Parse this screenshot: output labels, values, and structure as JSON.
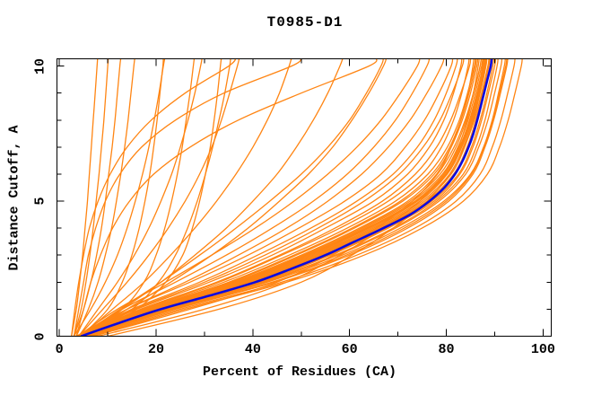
{
  "chart_data": {
    "type": "line",
    "title": "T0985-D1",
    "xlabel": "Percent of Residues (CA)",
    "ylabel": "Distance Cutoff, A",
    "xlim": [
      -0.5,
      101.7
    ],
    "ylim": [
      0,
      10.27
    ],
    "grid": "off",
    "legend": "none",
    "axis_color": "#000000",
    "x_tick_labels": [
      [
        0,
        "0"
      ],
      [
        20,
        "20"
      ],
      [
        40,
        "40"
      ],
      [
        60,
        "60"
      ],
      [
        80,
        "80"
      ],
      [
        100,
        "100"
      ]
    ],
    "x_minor_ticks": [
      10,
      30,
      50,
      70,
      90
    ],
    "y_tick_labels": [
      [
        0,
        "0"
      ],
      [
        5,
        "5"
      ],
      [
        10,
        "10"
      ]
    ],
    "y_minor_ticks": [
      1,
      2,
      3,
      4,
      6,
      7,
      8,
      9
    ],
    "highlight_model": {
      "name": "highlighted-model",
      "color": "#0a0ae0",
      "cutoffs": [
        0,
        0.5,
        1,
        1.5,
        2,
        2.5,
        3,
        3.5,
        4,
        4.5,
        5,
        5.5,
        6,
        6.5,
        7,
        7.5,
        8,
        8.5,
        9,
        9.5,
        10,
        10.3
      ],
      "percents": [
        4.5,
        12.5,
        21,
        31,
        40.5,
        48,
        55,
        61,
        67,
        72.5,
        76.5,
        79.6,
        81.8,
        83.4,
        84.6,
        85.6,
        86.4,
        87.1,
        87.8,
        88.5,
        89.2,
        89.4
      ]
    },
    "models": {
      "name": "server-models",
      "color": "#ff8513",
      "cutoffs": [
        0,
        1,
        2,
        3,
        4,
        5,
        6,
        7,
        8,
        9,
        10,
        10.3
      ],
      "percents_list": [
        [
          4,
          18,
          36,
          50,
          62,
          72,
          78,
          81,
          83,
          84.5,
          85.5,
          85.7
        ],
        [
          5,
          20,
          38,
          52,
          64,
          74,
          80,
          83,
          85,
          86.5,
          87.5,
          87.7
        ],
        [
          4.5,
          19,
          37,
          51,
          63.5,
          73.5,
          79.5,
          82.5,
          84.3,
          85.6,
          86.6,
          86.8
        ],
        [
          5,
          22,
          42,
          57,
          69,
          78,
          83.5,
          86.2,
          88,
          89.3,
          90.5,
          90.7
        ],
        [
          5.5,
          23,
          43,
          58.5,
          70.5,
          79.5,
          85,
          87.7,
          89.5,
          90.8,
          92,
          92.2
        ],
        [
          4,
          17,
          33,
          46,
          58,
          68,
          75,
          79,
          81.5,
          83.2,
          84.5,
          84.7
        ],
        [
          4,
          16,
          31,
          44,
          55,
          65,
          72,
          76.5,
          79.5,
          81.5,
          83,
          83.2
        ],
        [
          5,
          21,
          40,
          54.5,
          66.5,
          76,
          81.5,
          84.3,
          86.1,
          87.5,
          88.8,
          89
        ],
        [
          5,
          20.5,
          39.5,
          54,
          66,
          75.5,
          81,
          83.8,
          85.6,
          87,
          88.2,
          88.4
        ],
        [
          4.5,
          19.5,
          38.5,
          53,
          65,
          74.5,
          80.2,
          83.2,
          85.2,
          86.7,
          88,
          88.2
        ],
        [
          6,
          24,
          44.5,
          60,
          72,
          80.5,
          85.5,
          88,
          89.8,
          91.2,
          92.5,
          92.7
        ],
        [
          6.5,
          25,
          46,
          61.5,
          73.5,
          82,
          87,
          89.5,
          91.3,
          92.7,
          94,
          94.2
        ],
        [
          7,
          26,
          47,
          63,
          75,
          83.5,
          88.5,
          91,
          92.8,
          94.2,
          95.5,
          95.7
        ],
        [
          4,
          15,
          29,
          41,
          52,
          61.5,
          69,
          74,
          77.5,
          80,
          82,
          82.3
        ],
        [
          3.5,
          14,
          27,
          39,
          49.5,
          59,
          66.5,
          71.5,
          75.5,
          78.5,
          81,
          81.3
        ],
        [
          5.5,
          22.5,
          42.5,
          57.5,
          69.5,
          78.5,
          84,
          86.7,
          88.6,
          90,
          91.3,
          91.5
        ],
        [
          5,
          21.5,
          41,
          55.5,
          67.5,
          77,
          82.5,
          85.2,
          87,
          88.4,
          89.6,
          89.8
        ],
        [
          4.5,
          18.5,
          35.5,
          49,
          61,
          71,
          77.5,
          81,
          83.3,
          85,
          86.3,
          86.5
        ],
        [
          4,
          17.5,
          34,
          47.5,
          59.5,
          69.5,
          76.2,
          80.2,
          82.7,
          84.4,
          85.8,
          86
        ],
        [
          5,
          19.8,
          38,
          52.5,
          64.5,
          74,
          80,
          83,
          85,
          86.6,
          87.9,
          88.1
        ],
        [
          4.2,
          18,
          35,
          48.5,
          60.5,
          70.5,
          77,
          80.7,
          83,
          84.7,
          86,
          86.2
        ],
        [
          4.8,
          20.2,
          39,
          53.5,
          65.5,
          75,
          80.7,
          83.5,
          85.4,
          86.9,
          88.1,
          88.3
        ],
        [
          4.3,
          18.8,
          36.5,
          50.5,
          62.5,
          72.5,
          78.7,
          82,
          84.1,
          85.7,
          87,
          87.2
        ],
        [
          5.2,
          21.8,
          41.5,
          56,
          68,
          77.5,
          82.8,
          85.5,
          87.3,
          88.7,
          90,
          90.2
        ],
        [
          4.6,
          19.2,
          37.5,
          51.5,
          63.8,
          73.8,
          79.8,
          82.8,
          84.8,
          86.3,
          87.6,
          87.8
        ],
        [
          3.8,
          15.5,
          30,
          42.5,
          53.5,
          63,
          70.3,
          75.2,
          78.7,
          81.2,
          83.3,
          83.6
        ],
        [
          4.1,
          16.8,
          32.5,
          45.5,
          57,
          66.8,
          73.6,
          78,
          80.9,
          83,
          84.8,
          85
        ],
        [
          5.8,
          23.5,
          44,
          59.3,
          71.3,
          80,
          85.2,
          87.8,
          89.7,
          91,
          92.3,
          92.5
        ],
        [
          4.9,
          20.8,
          40,
          54.8,
          66.8,
          76.3,
          81.8,
          84.6,
          86.5,
          87.9,
          89.1,
          89.3
        ],
        [
          4.4,
          19,
          37,
          51,
          63,
          73,
          79.2,
          82.4,
          84.5,
          86,
          87.3,
          87.5
        ],
        [
          8,
          30,
          47,
          58,
          67,
          74.5,
          79.5,
          82.7,
          84.9,
          86.5,
          87.8,
          88
        ],
        [
          10,
          33,
          50,
          60.5,
          69,
          76,
          80.7,
          83.7,
          85.8,
          87.3,
          88.6,
          88.8
        ],
        [
          7,
          27,
          45,
          56.5,
          65.5,
          73,
          78.2,
          81.6,
          83.9,
          85.6,
          87,
          87.2
        ],
        [
          4,
          13,
          24,
          34.5,
          44,
          52.5,
          59.5,
          65,
          69.5,
          73,
          76,
          76.5
        ],
        [
          3.8,
          12,
          22,
          31.5,
          40.5,
          48.5,
          55.5,
          61.5,
          66.5,
          70.5,
          74,
          74.5
        ],
        [
          4.2,
          14,
          26,
          37,
          47,
          55.5,
          62.5,
          68,
          72.5,
          76,
          79,
          79.5
        ],
        [
          2.5,
          3.5,
          4.2,
          4.8,
          5.3,
          5.8,
          6.2,
          6.6,
          7,
          7.4,
          7.8,
          7.9
        ],
        [
          3,
          4.5,
          5.5,
          6.3,
          7,
          7.6,
          8.2,
          8.7,
          9.2,
          9.6,
          10,
          10.1
        ],
        [
          3,
          5,
          6.5,
          7.7,
          8.7,
          9.5,
          10.2,
          10.9,
          11.5,
          12,
          12.5,
          12.7
        ],
        [
          3.5,
          6,
          8,
          9.5,
          10.8,
          11.8,
          12.7,
          13.5,
          14.2,
          14.8,
          15.4,
          15.6
        ],
        [
          3,
          6.5,
          9.5,
          12,
          14,
          15.7,
          17.2,
          18.5,
          19.6,
          20.6,
          21.5,
          21.8
        ],
        [
          4,
          8,
          12,
          15.5,
          18.5,
          21,
          23.2,
          25,
          26.6,
          28,
          29.2,
          29.5
        ],
        [
          4,
          9,
          14,
          18.5,
          22.5,
          26,
          29,
          31.5,
          33.5,
          35.2,
          36.8,
          37.2
        ],
        [
          4.5,
          11,
          17.5,
          23,
          28,
          32.5,
          36.5,
          40,
          43,
          45.5,
          47.5,
          48
        ],
        [
          5,
          13,
          21,
          28,
          34.5,
          40,
          45,
          49,
          52.5,
          55.5,
          58,
          58.6
        ],
        [
          5,
          14,
          23,
          31.5,
          39,
          45.5,
          51.5,
          56.5,
          60.5,
          64,
          67,
          67.6
        ],
        [
          4.5,
          12.5,
          21,
          29,
          36.5,
          43.5,
          50,
          55.5,
          60,
          63.5,
          66.5,
          67
        ],
        [
          3,
          4,
          5,
          6,
          7.5,
          9.5,
          12.5,
          17,
          24,
          34,
          48,
          50
        ],
        [
          3.5,
          5,
          6.5,
          8.5,
          11,
          14.5,
          19.5,
          27,
          37,
          50,
          64,
          65.5
        ],
        [
          2.5,
          3.2,
          4,
          5,
          6.2,
          8,
          10.5,
          14,
          19,
          26,
          35,
          36.5
        ],
        [
          6,
          16,
          22,
          25.5,
          27.5,
          29,
          30.2,
          31.2,
          32,
          32.7,
          33.3,
          33.5
        ],
        [
          5,
          13,
          17.5,
          20,
          21.8,
          23.2,
          24.4,
          25.4,
          26.2,
          27,
          27.7,
          27.9
        ],
        [
          4.5,
          10,
          13,
          15,
          16.5,
          17.7,
          18.7,
          19.5,
          20.2,
          20.8,
          21.4,
          21.5
        ],
        [
          5.5,
          15,
          20.5,
          24,
          26.5,
          28.5,
          30.2,
          31.7,
          33,
          34.2,
          35.2,
          35.4
        ]
      ]
    }
  }
}
